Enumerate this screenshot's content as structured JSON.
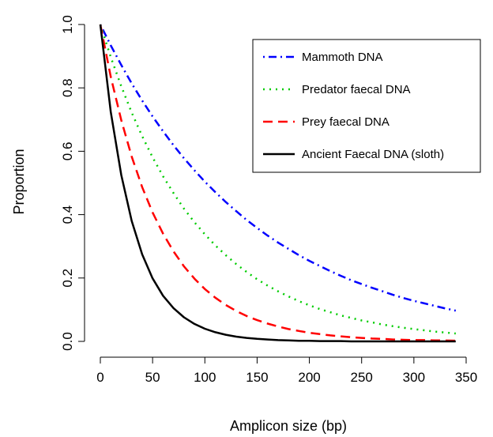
{
  "chart_data": {
    "type": "line",
    "xlabel": "Amplicon size (bp)",
    "ylabel": "Proportion",
    "xlim": [
      0,
      350
    ],
    "ylim": [
      0,
      1
    ],
    "xticks": [
      "0",
      "50",
      "100",
      "150",
      "200",
      "250",
      "300",
      "350"
    ],
    "yticks": [
      "0.0",
      "0.2",
      "0.4",
      "0.6",
      "0.8",
      "1.0"
    ],
    "grid": false,
    "legend_position": "top-right",
    "x": [
      0,
      10,
      20,
      30,
      40,
      50,
      60,
      70,
      80,
      90,
      100,
      110,
      120,
      130,
      140,
      150,
      160,
      170,
      180,
      190,
      200,
      210,
      220,
      230,
      240,
      250,
      260,
      270,
      280,
      290,
      300,
      310,
      320,
      330,
      340
    ],
    "series": [
      {
        "name": "Mammoth DNA",
        "color": "#0000ff",
        "dash": "dotdash",
        "values": [
          1.0,
          0.934,
          0.872,
          0.814,
          0.76,
          0.71,
          0.663,
          0.619,
          0.578,
          0.54,
          0.504,
          0.471,
          0.44,
          0.411,
          0.383,
          0.358,
          0.334,
          0.312,
          0.292,
          0.272,
          0.254,
          0.238,
          0.222,
          0.207,
          0.193,
          0.181,
          0.169,
          0.158,
          0.147,
          0.137,
          0.128,
          0.12,
          0.112,
          0.104,
          0.097
        ]
      },
      {
        "name": "Predator faecal DNA",
        "color": "#00cc00",
        "dash": "dotted",
        "values": [
          1.0,
          0.897,
          0.805,
          0.722,
          0.648,
          0.581,
          0.521,
          0.468,
          0.419,
          0.376,
          0.338,
          0.303,
          0.272,
          0.244,
          0.219,
          0.196,
          0.176,
          0.158,
          0.142,
          0.127,
          0.114,
          0.102,
          0.092,
          0.082,
          0.074,
          0.066,
          0.06,
          0.053,
          0.048,
          0.043,
          0.039,
          0.035,
          0.031,
          0.028,
          0.025
        ]
      },
      {
        "name": "Prey faecal DNA",
        "color": "#ff0000",
        "dash": "dashed",
        "values": [
          1.0,
          0.835,
          0.698,
          0.583,
          0.487,
          0.407,
          0.34,
          0.284,
          0.237,
          0.198,
          0.165,
          0.138,
          0.115,
          0.096,
          0.08,
          0.067,
          0.056,
          0.047,
          0.039,
          0.033,
          0.027,
          0.023,
          0.019,
          0.016,
          0.013,
          0.011,
          0.009,
          0.008,
          0.006,
          0.005,
          0.004,
          0.004,
          0.003,
          0.003,
          0.002
        ]
      },
      {
        "name": "Ancient Faecal DNA (sloth)",
        "color": "#000000",
        "dash": "solid",
        "values": [
          1.0,
          0.724,
          0.525,
          0.38,
          0.275,
          0.199,
          0.144,
          0.105,
          0.076,
          0.055,
          0.04,
          0.029,
          0.021,
          0.015,
          0.011,
          0.008,
          0.006,
          0.004,
          0.003,
          0.002,
          0.002,
          0.001,
          0.001,
          0.001,
          0.0,
          0.0,
          0.0,
          0.0,
          0.0,
          0.0,
          0.0,
          0.0,
          0.0,
          0.0,
          0.0
        ]
      }
    ]
  }
}
